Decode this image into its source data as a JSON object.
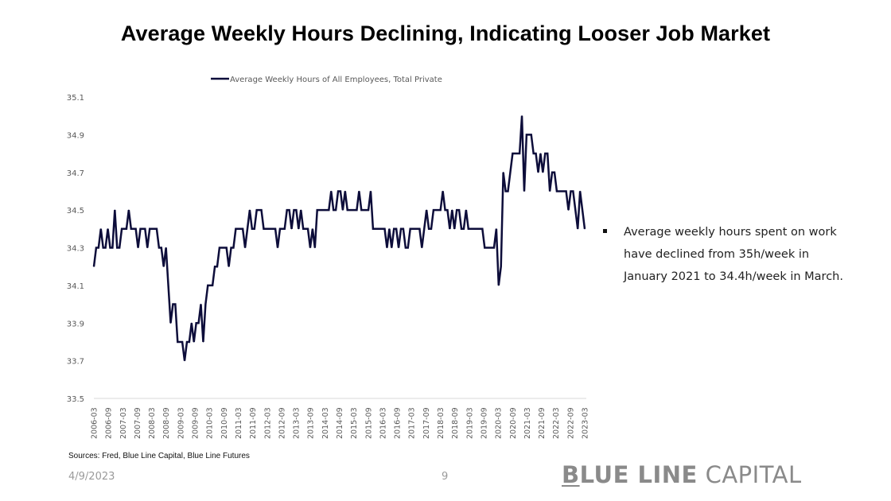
{
  "slide": {
    "title": "Average Weekly Hours Declining, Indicating Looser Job Market",
    "bullet_text": "Average weekly hours spent on work have declined  from 35h/week  in January 2021 to 34.4h/week  in March.",
    "sources": "Sources: Fred, Blue Line Capital, Blue Line Futures",
    "date": "4/9/2023",
    "page_number": "9",
    "logo": {
      "part1": "B",
      "part2": "LUE LINE",
      "part3": " CAPITAL"
    },
    "colors": {
      "line": "#0d0d3a",
      "axis_text": "#595959",
      "logo": "#8a8a8a"
    }
  },
  "chart_data": {
    "type": "line",
    "title": "",
    "xlabel": "",
    "ylabel": "",
    "ylim": [
      33.5,
      35.1
    ],
    "yticks": [
      "33.5",
      "33.7",
      "33.9",
      "34.1",
      "34.3",
      "34.5",
      "34.7",
      "34.9",
      "35.1"
    ],
    "grid": false,
    "legend_position": "top-center",
    "xtick_labels": [
      "2006-03",
      "2006-09",
      "2007-03",
      "2007-09",
      "2008-03",
      "2008-09",
      "2009-03",
      "2009-09",
      "2010-03",
      "2010-09",
      "2011-03",
      "2011-09",
      "2012-03",
      "2012-09",
      "2013-03",
      "2013-09",
      "2014-03",
      "2014-09",
      "2015-03",
      "2015-09",
      "2016-03",
      "2016-09",
      "2017-03",
      "2017-09",
      "2018-03",
      "2018-09",
      "2019-03",
      "2019-09",
      "2020-03",
      "2020-09",
      "2021-03",
      "2021-09",
      "2022-03",
      "2022-09",
      "2023-03"
    ],
    "start": "2006-03",
    "frequency": "monthly",
    "series": [
      {
        "name": "Average Weekly Hours of All Employees, Total Private",
        "values": [
          34.2,
          34.3,
          34.3,
          34.4,
          34.3,
          34.3,
          34.4,
          34.3,
          34.3,
          34.5,
          34.3,
          34.3,
          34.4,
          34.4,
          34.4,
          34.5,
          34.4,
          34.4,
          34.4,
          34.3,
          34.4,
          34.4,
          34.4,
          34.3,
          34.4,
          34.4,
          34.4,
          34.4,
          34.3,
          34.3,
          34.2,
          34.3,
          34.1,
          33.9,
          34.0,
          34.0,
          33.8,
          33.8,
          33.8,
          33.7,
          33.8,
          33.8,
          33.9,
          33.8,
          33.9,
          33.9,
          34.0,
          33.8,
          34.0,
          34.1,
          34.1,
          34.1,
          34.2,
          34.2,
          34.3,
          34.3,
          34.3,
          34.3,
          34.2,
          34.3,
          34.3,
          34.4,
          34.4,
          34.4,
          34.4,
          34.3,
          34.4,
          34.5,
          34.4,
          34.4,
          34.5,
          34.5,
          34.5,
          34.4,
          34.4,
          34.4,
          34.4,
          34.4,
          34.4,
          34.3,
          34.4,
          34.4,
          34.4,
          34.5,
          34.5,
          34.4,
          34.5,
          34.5,
          34.4,
          34.5,
          34.4,
          34.4,
          34.4,
          34.3,
          34.4,
          34.3,
          34.5,
          34.5,
          34.5,
          34.5,
          34.5,
          34.5,
          34.6,
          34.5,
          34.5,
          34.6,
          34.6,
          34.5,
          34.6,
          34.5,
          34.5,
          34.5,
          34.5,
          34.5,
          34.6,
          34.5,
          34.5,
          34.5,
          34.5,
          34.6,
          34.4,
          34.4,
          34.4,
          34.4,
          34.4,
          34.4,
          34.3,
          34.4,
          34.3,
          34.4,
          34.4,
          34.3,
          34.4,
          34.4,
          34.3,
          34.3,
          34.4,
          34.4,
          34.4,
          34.4,
          34.4,
          34.3,
          34.4,
          34.5,
          34.4,
          34.4,
          34.5,
          34.5,
          34.5,
          34.5,
          34.6,
          34.5,
          34.5,
          34.4,
          34.5,
          34.4,
          34.5,
          34.5,
          34.4,
          34.4,
          34.5,
          34.4,
          34.4,
          34.4,
          34.4,
          34.4,
          34.4,
          34.4,
          34.3,
          34.3,
          34.3,
          34.3,
          34.3,
          34.4,
          34.1,
          34.2,
          34.7,
          34.6,
          34.6,
          34.7,
          34.8,
          34.8,
          34.8,
          34.8,
          35.0,
          34.6,
          34.9,
          34.9,
          34.9,
          34.8,
          34.8,
          34.7,
          34.8,
          34.7,
          34.8,
          34.8,
          34.6,
          34.7,
          34.7,
          34.6,
          34.6,
          34.6,
          34.6,
          34.6,
          34.5,
          34.6,
          34.6,
          34.5,
          34.4,
          34.6,
          34.5,
          34.4
        ]
      }
    ]
  }
}
